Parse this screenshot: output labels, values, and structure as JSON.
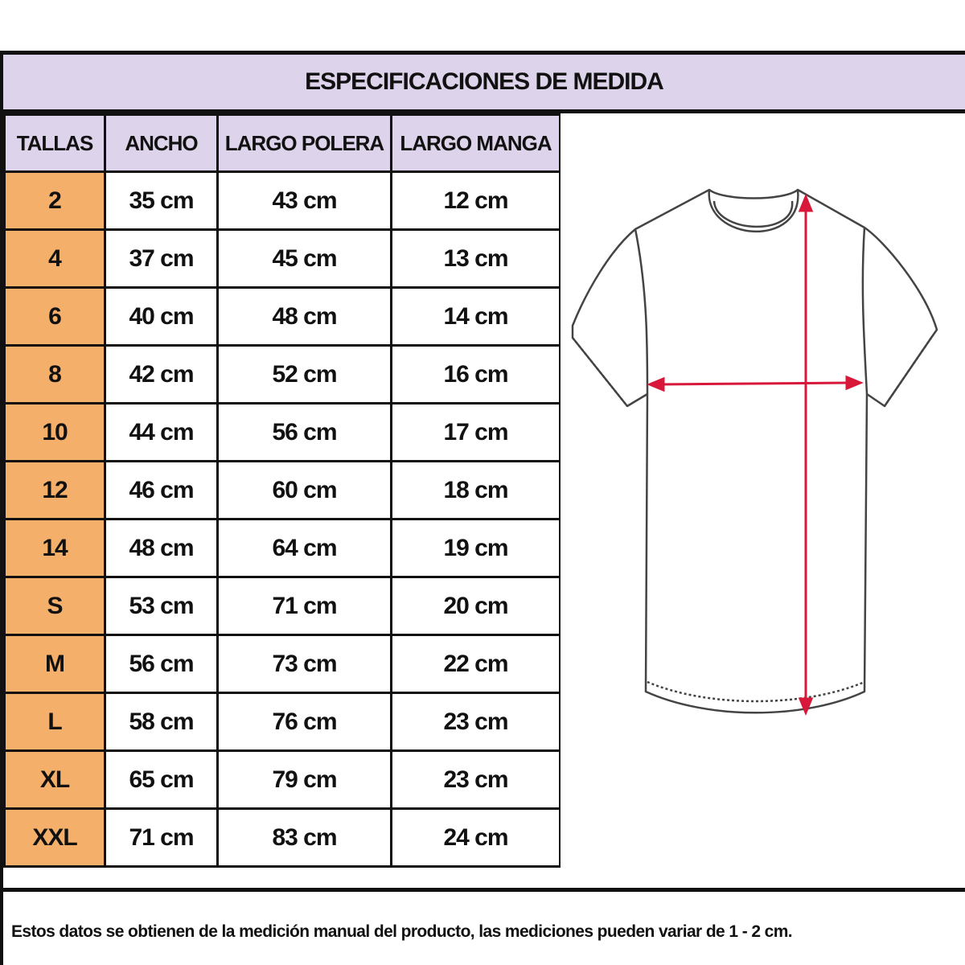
{
  "title": "ESPECIFICACIONES DE MEDIDA",
  "headers": [
    "TALLAS",
    "ANCHO",
    "LARGO POLERA",
    "LARGO MANGA"
  ],
  "rows": [
    [
      "2",
      "35 cm",
      "43 cm",
      "12 cm"
    ],
    [
      "4",
      "37 cm",
      "45 cm",
      "13 cm"
    ],
    [
      "6",
      "40 cm",
      "48 cm",
      "14 cm"
    ],
    [
      "8",
      "42 cm",
      "52 cm",
      "16 cm"
    ],
    [
      "10",
      "44 cm",
      "56 cm",
      "17 cm"
    ],
    [
      "12",
      "46 cm",
      "60 cm",
      "18 cm"
    ],
    [
      "14",
      "48 cm",
      "64 cm",
      "19 cm"
    ],
    [
      "S",
      "53 cm",
      "71 cm",
      "20 cm"
    ],
    [
      "M",
      "56 cm",
      "73 cm",
      "22 cm"
    ],
    [
      "L",
      "58 cm",
      "76 cm",
      "23 cm"
    ],
    [
      "XL",
      "65 cm",
      "79 cm",
      "23 cm"
    ],
    [
      "XXL",
      "71 cm",
      "83 cm",
      "24 cm"
    ]
  ],
  "footer": "Estos datos se obtienen de la medición manual del producto, las mediciones pueden variar de 1 - 2 cm.",
  "colors": {
    "header_bg": "#ddd3ea",
    "size_bg": "#f4b06a",
    "arrow": "#d8183a",
    "border": "#111111"
  },
  "illustration": "t-shirt-measurement-diagram"
}
